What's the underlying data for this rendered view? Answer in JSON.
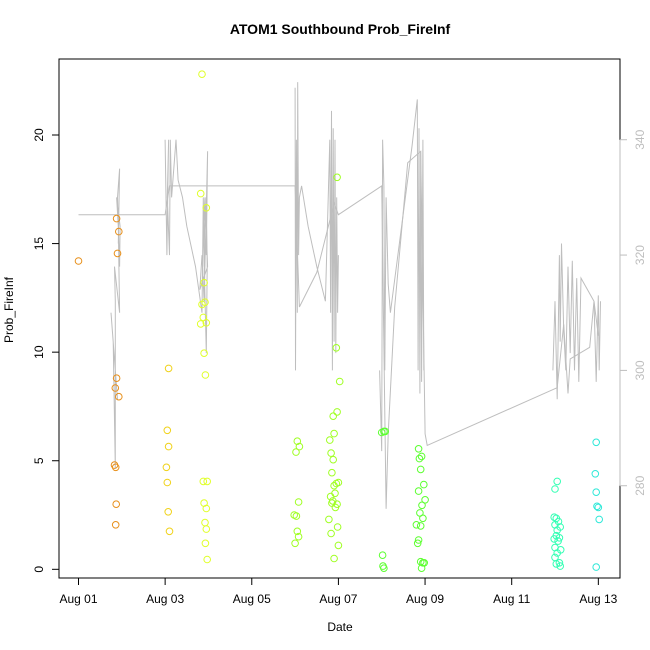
{
  "chart_data": {
    "type": "scatter",
    "title": "ATOM1 Southbound Prob_FireInf",
    "xlabel": "Date",
    "ylabel": "Prob_FireInf",
    "x_tick_labels": [
      "Aug 01",
      "Aug 03",
      "Aug 05",
      "Aug 07",
      "Aug 09",
      "Aug 11",
      "Aug 13"
    ],
    "x_tick_days": [
      1,
      3,
      5,
      7,
      9,
      11,
      13
    ],
    "xlim": [
      0.55,
      13.5
    ],
    "y_ticks": [
      0,
      5,
      10,
      15,
      20
    ],
    "ylim": [
      -0.4,
      23.5
    ],
    "y2_ticks": [
      280,
      300,
      320,
      340
    ],
    "y2lim": [
      264,
      354
    ],
    "grid": false,
    "colors": {
      "axis": "#000000",
      "secondary_axis": "#bebebe",
      "line": "#bebebe"
    },
    "point_series": [
      {
        "color": "#e8901b",
        "points": [
          [
            1.0,
            14.2
          ],
          [
            1.88,
            16.15
          ],
          [
            1.93,
            15.55
          ],
          [
            1.9,
            14.55
          ],
          [
            1.88,
            8.8
          ],
          [
            1.85,
            8.35
          ],
          [
            1.93,
            7.95
          ],
          [
            1.83,
            4.8
          ],
          [
            1.86,
            4.7
          ],
          [
            1.87,
            3.0
          ],
          [
            1.86,
            2.05
          ]
        ]
      },
      {
        "color": "#f0d21a",
        "points": [
          [
            3.05,
            6.4
          ],
          [
            3.08,
            5.65
          ],
          [
            3.03,
            4.7
          ],
          [
            3.05,
            4.0
          ],
          [
            3.07,
            2.65
          ],
          [
            3.1,
            1.75
          ],
          [
            3.08,
            9.25
          ]
        ]
      },
      {
        "color": "#e0ff2a",
        "points": [
          [
            3.85,
            22.8
          ],
          [
            3.82,
            17.3
          ],
          [
            3.95,
            16.65
          ],
          [
            3.9,
            13.2
          ],
          [
            3.85,
            12.2
          ],
          [
            3.92,
            12.3
          ],
          [
            3.88,
            11.6
          ],
          [
            3.95,
            11.35
          ],
          [
            3.82,
            11.3
          ],
          [
            3.9,
            9.95
          ],
          [
            3.93,
            8.95
          ],
          [
            3.88,
            4.05
          ],
          [
            3.97,
            4.05
          ],
          [
            3.9,
            3.05
          ],
          [
            3.95,
            2.8
          ],
          [
            3.92,
            2.15
          ],
          [
            3.95,
            1.85
          ],
          [
            3.93,
            1.2
          ],
          [
            3.97,
            0.45
          ]
        ]
      },
      {
        "color": "#a0ff24",
        "points": [
          [
            6.05,
            5.9
          ],
          [
            6.1,
            5.65
          ],
          [
            6.02,
            5.4
          ],
          [
            6.08,
            3.1
          ],
          [
            5.98,
            2.5
          ],
          [
            6.03,
            2.45
          ],
          [
            6.05,
            1.75
          ],
          [
            6.08,
            1.5
          ],
          [
            6.0,
            1.2
          ],
          [
            6.88,
            7.05
          ],
          [
            6.97,
            7.25
          ],
          [
            6.9,
            6.25
          ],
          [
            6.8,
            5.95
          ],
          [
            6.83,
            5.35
          ],
          [
            6.88,
            5.05
          ],
          [
            6.85,
            4.45
          ],
          [
            6.95,
            3.95
          ],
          [
            6.9,
            3.85
          ],
          [
            7.0,
            4.0
          ],
          [
            6.82,
            3.35
          ],
          [
            6.87,
            3.15
          ],
          [
            6.92,
            3.5
          ],
          [
            6.97,
            3.0
          ],
          [
            6.85,
            3.05
          ],
          [
            6.93,
            2.85
          ],
          [
            6.78,
            2.3
          ],
          [
            6.98,
            1.95
          ],
          [
            6.83,
            1.65
          ],
          [
            7.0,
            1.1
          ],
          [
            6.9,
            0.5
          ],
          [
            6.97,
            18.05
          ],
          [
            6.95,
            10.2
          ],
          [
            7.03,
            8.65
          ]
        ]
      },
      {
        "color": "#5cff30",
        "points": [
          [
            8.0,
            6.3
          ],
          [
            8.05,
            6.35
          ],
          [
            8.08,
            6.35
          ],
          [
            8.02,
            0.65
          ],
          [
            8.03,
            0.15
          ],
          [
            8.05,
            0.05
          ],
          [
            8.85,
            5.55
          ],
          [
            8.92,
            5.2
          ],
          [
            8.87,
            5.1
          ],
          [
            8.9,
            4.6
          ],
          [
            8.97,
            3.9
          ],
          [
            8.85,
            3.6
          ],
          [
            9.0,
            3.2
          ],
          [
            8.93,
            2.95
          ],
          [
            8.88,
            2.6
          ],
          [
            8.95,
            2.35
          ],
          [
            8.8,
            2.05
          ],
          [
            8.9,
            2.0
          ],
          [
            8.85,
            1.35
          ],
          [
            8.83,
            1.2
          ],
          [
            8.9,
            0.35
          ],
          [
            8.95,
            0.3
          ],
          [
            8.98,
            0.3
          ],
          [
            8.92,
            0.05
          ]
        ]
      },
      {
        "color": "#34ffb4",
        "points": [
          [
            12.05,
            4.05
          ],
          [
            12.0,
            3.7
          ],
          [
            11.98,
            2.4
          ],
          [
            12.03,
            2.35
          ],
          [
            12.08,
            2.2
          ],
          [
            12.0,
            2.05
          ],
          [
            12.12,
            1.95
          ],
          [
            12.05,
            1.8
          ],
          [
            12.03,
            1.55
          ],
          [
            12.1,
            1.45
          ],
          [
            11.98,
            1.4
          ],
          [
            12.07,
            1.3
          ],
          [
            12.0,
            1.0
          ],
          [
            12.13,
            0.9
          ],
          [
            12.05,
            0.75
          ],
          [
            12.0,
            0.55
          ],
          [
            12.1,
            0.3
          ],
          [
            12.03,
            0.25
          ],
          [
            12.12,
            0.15
          ]
        ]
      },
      {
        "color": "#2ee8d8",
        "points": [
          [
            12.95,
            5.85
          ],
          [
            12.93,
            4.4
          ],
          [
            12.95,
            3.55
          ],
          [
            12.97,
            2.9
          ],
          [
            13.0,
            2.85
          ],
          [
            13.02,
            2.3
          ],
          [
            12.95,
            0.1
          ]
        ]
      }
    ],
    "temp_line": [
      [
        1.0,
        327
      ],
      [
        2.55,
        327
      ],
      [
        3.0,
        327
      ],
      [
        3.1,
        332
      ],
      [
        6.0,
        332
      ],
      [
        6.1,
        311
      ],
      [
        6.5,
        317
      ],
      [
        6.9,
        329
      ],
      [
        7.0,
        327
      ],
      [
        8.0,
        332
      ],
      [
        8.1,
        276
      ],
      [
        8.15,
        289
      ],
      [
        8.3,
        311
      ],
      [
        8.6,
        336
      ],
      [
        8.9,
        338
      ],
      [
        9.0,
        289
      ],
      [
        9.05,
        287
      ],
      [
        12.05,
        297
      ],
      [
        12.2,
        308
      ],
      [
        12.3,
        296
      ],
      [
        12.35,
        302
      ],
      [
        12.8,
        304
      ],
      [
        12.9,
        312
      ],
      [
        13.0,
        306
      ]
    ],
    "burst_segments": [
      [
        [
          1.9,
          295
        ],
        [
          1.75,
          310
        ],
        [
          1.8,
          305
        ],
        [
          1.85,
          283
        ],
        [
          1.85,
          312
        ],
        [
          1.83,
          318
        ],
        [
          1.95,
          310
        ],
        [
          1.92,
          325
        ],
        [
          1.88,
          330
        ],
        [
          1.96,
          325
        ],
        [
          1.95,
          318
        ],
        [
          1.93,
          322
        ],
        [
          1.9,
          330
        ],
        [
          1.95,
          335
        ],
        [
          1.92,
          322
        ]
      ],
      [
        [
          3.0,
          340
        ],
        [
          3.02,
          330
        ],
        [
          3.04,
          320
        ],
        [
          3.06,
          330
        ],
        [
          3.08,
          340
        ],
        [
          3.05,
          330
        ],
        [
          3.1,
          320
        ],
        [
          3.12,
          340
        ],
        [
          3.15,
          330
        ],
        [
          3.2,
          335
        ],
        [
          3.25,
          340
        ],
        [
          3.3,
          333
        ],
        [
          3.4,
          330
        ],
        [
          3.5,
          325
        ],
        [
          3.7,
          318
        ],
        [
          3.85,
          310
        ],
        [
          3.88,
          330
        ],
        [
          3.9,
          318
        ],
        [
          3.92,
          330
        ],
        [
          3.95,
          320
        ],
        [
          3.98,
          338
        ],
        [
          3.9,
          312
        ],
        [
          3.85,
          320
        ],
        [
          3.8,
          314
        ],
        [
          3.98,
          318
        ],
        [
          3.92,
          330
        ],
        [
          3.88,
          325
        ],
        [
          3.95,
          303
        ],
        [
          3.97,
          318
        ],
        [
          3.95,
          330
        ]
      ],
      [
        [
          6.0,
          349
        ],
        [
          6.01,
          300
        ],
        [
          6.03,
          340
        ],
        [
          6.05,
          310
        ],
        [
          6.06,
          350
        ],
        [
          6.08,
          320
        ],
        [
          6.1,
          330
        ],
        [
          6.15,
          332
        ],
        [
          6.3,
          325
        ],
        [
          6.5,
          318
        ],
        [
          6.7,
          312
        ],
        [
          6.8,
          340
        ],
        [
          6.82,
          310
        ],
        [
          6.84,
          345
        ],
        [
          6.86,
          300
        ],
        [
          6.88,
          342
        ],
        [
          6.9,
          305
        ],
        [
          6.92,
          340
        ],
        [
          6.94,
          303
        ],
        [
          6.96,
          330
        ],
        [
          6.98,
          310
        ],
        [
          7.0,
          320
        ]
      ],
      [
        [
          7.95,
          300
        ],
        [
          8.0,
          286
        ],
        [
          8.02,
          340
        ],
        [
          8.05,
          332
        ],
        [
          8.07,
          300
        ],
        [
          8.1,
          330
        ],
        [
          8.15,
          315
        ],
        [
          8.2,
          310
        ],
        [
          8.7,
          339
        ],
        [
          8.82,
          347
        ],
        [
          8.84,
          300
        ],
        [
          8.86,
          342
        ],
        [
          8.88,
          296
        ],
        [
          8.9,
          338
        ],
        [
          8.92,
          298
        ],
        [
          8.95,
          340
        ],
        [
          8.97,
          300
        ]
      ],
      [
        [
          11.95,
          300
        ],
        [
          12.0,
          312
        ],
        [
          12.05,
          295
        ],
        [
          12.1,
          320
        ],
        [
          12.12,
          305
        ],
        [
          12.15,
          322
        ],
        [
          12.2,
          307
        ],
        [
          12.25,
          300
        ],
        [
          12.3,
          318
        ],
        [
          12.35,
          303
        ],
        [
          12.4,
          319
        ],
        [
          12.45,
          300
        ],
        [
          12.5,
          316
        ],
        [
          12.55,
          298
        ],
        [
          12.6,
          316
        ],
        [
          12.9,
          312
        ],
        [
          12.95,
          298
        ],
        [
          13.0,
          313
        ],
        [
          13.02,
          300
        ],
        [
          13.05,
          312
        ]
      ]
    ]
  }
}
